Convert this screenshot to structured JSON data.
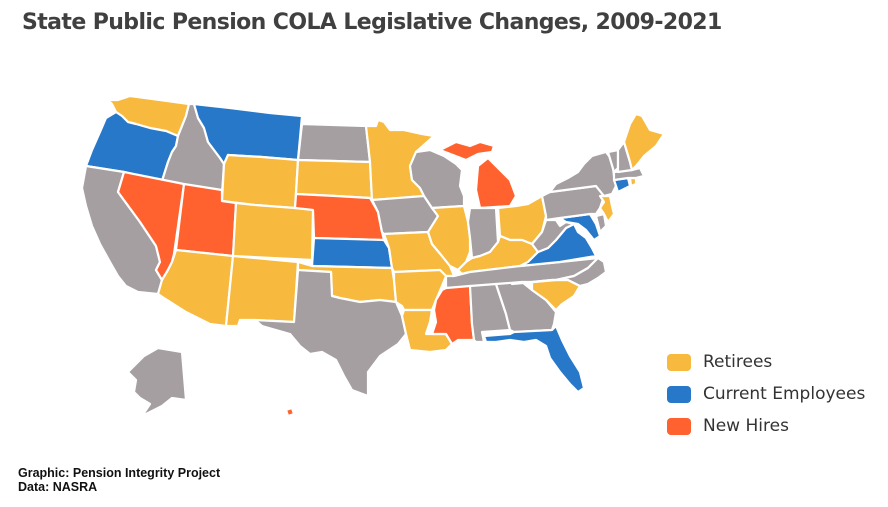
{
  "title": "State Public Pension COLA Legislative Changes, 2009-2021",
  "colors": {
    "retirees": "#F7B93E",
    "current_employees": "#2878CA",
    "new_hires": "#FF622E",
    "none": "#A59FA1"
  },
  "legend": [
    {
      "key": "retirees",
      "label": "Retirees"
    },
    {
      "key": "current_employees",
      "label": "Current Employees"
    },
    {
      "key": "new_hires",
      "label": "New Hires"
    }
  ],
  "states": {
    "WA": "retirees",
    "OR": "current_employees",
    "CA": "none",
    "ID": "none",
    "NV": "new_hires",
    "MT": "current_employees",
    "WY": "retirees",
    "UT": "new_hires",
    "AZ": "retirees",
    "CO": "retirees",
    "NM": "retirees",
    "ND": "none",
    "SD": "retirees",
    "NE": "new_hires",
    "KS": "current_employees",
    "OK": "retirees",
    "TX": "none",
    "MN": "retirees",
    "IA": "none",
    "MO": "retirees",
    "AR": "retirees",
    "LA": "retirees",
    "WI": "none",
    "IL": "retirees",
    "MI": "new_hires",
    "IN": "none",
    "OH": "retirees",
    "KY": "retirees",
    "TN": "none",
    "MS": "new_hires",
    "AL": "none",
    "GA": "none",
    "FL": "current_employees",
    "SC": "retirees",
    "NC": "none",
    "VA": "current_employees",
    "WV": "none",
    "MD": "current_employees",
    "DE": "none",
    "PA": "none",
    "NJ": "retirees",
    "NY": "none",
    "CT": "current_employees",
    "RI": "retirees",
    "MA": "none",
    "VT": "none",
    "NH": "none",
    "ME": "retirees",
    "AK": "none",
    "HI": "new_hires"
  },
  "credits": {
    "graphic": "Graphic: Pension Integrity Project",
    "data": "Data: NASRA"
  }
}
